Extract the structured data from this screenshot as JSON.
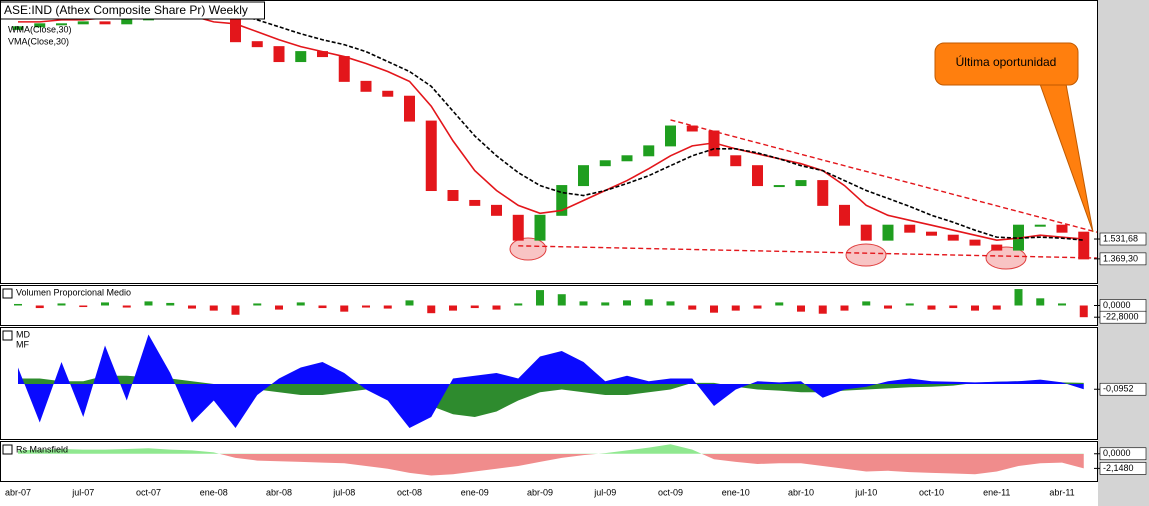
{
  "chart_data": [
    {
      "type": "candlestick",
      "title": "ASE:IND (Athex Composite Share Pr) Weekly",
      "categories": [
        "abr-07",
        null,
        null,
        "jul-07",
        null,
        null,
        "oct-07",
        null,
        null,
        "ene-08",
        null,
        null,
        "abr-08",
        null,
        null,
        "jul-08",
        null,
        null,
        "oct-08",
        null,
        null,
        "ene-09",
        null,
        null,
        "abr-09",
        null,
        null,
        "jul-09",
        null,
        null,
        "oct-09",
        null,
        null,
        "ene-10",
        null,
        null,
        "abr-10",
        null,
        null,
        "jul-10",
        null,
        null,
        "oct-10",
        null,
        null,
        "ene-11",
        null,
        null,
        "abr-11",
        null
      ],
      "open": [
        5000,
        5074,
        5160,
        5160,
        5217,
        5160,
        5276,
        5518,
        5457,
        5518,
        5366,
        4665,
        4536,
        4170,
        4411,
        4289,
        3729,
        3526,
        3429,
        2980,
        2014,
        1904,
        1852,
        1751,
        1522,
        1751,
        2071,
        2317,
        2382,
        2450,
        2591,
        2898,
        2818,
        2450,
        2317,
        2071,
        2071,
        2130,
        1852,
        1656,
        1522,
        1656,
        1592,
        1565,
        1522,
        1480,
        1439,
        1656,
        1656,
        1592
      ],
      "close": [
        5074,
        5160,
        5160,
        5217,
        5160,
        5276,
        5518,
        5457,
        5518,
        5366,
        4665,
        4536,
        4170,
        4411,
        4289,
        3729,
        3526,
        3429,
        2980,
        2014,
        1904,
        1852,
        1751,
        1522,
        1751,
        2071,
        2317,
        2382,
        2450,
        2591,
        2898,
        2818,
        2450,
        2317,
        2071,
        2071,
        2130,
        1852,
        1656,
        1522,
        1656,
        1592,
        1565,
        1522,
        1480,
        1439,
        1656,
        1656,
        1592,
        1369.3
      ],
      "up_color": "#1f9e1f",
      "down_color": "#e3161b",
      "series": [
        {
          "name": "WMA(Close,30)",
          "color": "#e3161b",
          "values": [
            5217,
            5217,
            5276,
            5276,
            5336,
            5366,
            5426,
            5457,
            5396,
            5217,
            5160,
            4934,
            4717,
            4536,
            4411,
            4289,
            4124,
            3943,
            3729,
            3241,
            2665,
            2253,
            2014,
            1852,
            1771,
            1800,
            1904,
            2014,
            2130,
            2278,
            2450,
            2591,
            2635,
            2548,
            2477,
            2409,
            2343,
            2253,
            2071,
            1852,
            1751,
            1702,
            1656,
            1610,
            1565,
            1522,
            1539,
            1565,
            1548,
            1531.68
          ]
        },
        {
          "name": "VMA(Close,30)",
          "color": "#000000",
          "dash": true,
          "values": [
            5457,
            5457,
            5457,
            5457,
            5457,
            5488,
            5518,
            5580,
            5580,
            5518,
            5457,
            5276,
            5074,
            4878,
            4717,
            4587,
            4411,
            4170,
            3943,
            3626,
            3152,
            2741,
            2450,
            2228,
            2071,
            1991,
            1958,
            2014,
            2095,
            2190,
            2317,
            2450,
            2548,
            2548,
            2491,
            2409,
            2317,
            2253,
            2130,
            2014,
            1926,
            1841,
            1751,
            1684,
            1610,
            1548,
            1539,
            1548,
            1539,
            1522
          ]
        }
      ],
      "log_scale": true,
      "ylim": [
        1195,
        5836
      ],
      "yticks": [
        {
          "value": 1531.68,
          "label": "1.531,68"
        },
        {
          "value": 1369.3,
          "label": "1.369,30"
        }
      ],
      "trendlines": [
        {
          "x": [
            30,
            49.6
          ],
          "y": [
            3000,
            1592
          ],
          "color": "#e3161b"
        },
        {
          "x": [
            23,
            49.6
          ],
          "y": [
            1474,
            1376
          ],
          "color": "#e3161b"
        }
      ],
      "annotation": "Última oportunidad"
    },
    {
      "type": "bar",
      "title": "Volumen Proporcional Medio",
      "values": [
        3,
        -5,
        4,
        -3,
        6,
        -4,
        8,
        5,
        -6,
        -10,
        -18,
        4,
        -8,
        6,
        -5,
        -12,
        -4,
        -6,
        10,
        -15,
        -10,
        -5,
        -8,
        4,
        30,
        22,
        8,
        6,
        10,
        12,
        8,
        -8,
        -14,
        -10,
        -6,
        6,
        -12,
        -16,
        -10,
        8,
        -6,
        4,
        -8,
        -5,
        -10,
        -8,
        32,
        14,
        4,
        -22.8
      ],
      "positive_color": "#22a022",
      "negative_color": "#e3161b",
      "ylim": [
        -38,
        38
      ],
      "yticks": [
        {
          "value": 0,
          "label": "0,0000"
        },
        {
          "value": -22.8,
          "label": "-22,8000"
        }
      ]
    },
    {
      "type": "area",
      "series": [
        {
          "name": "MD",
          "color": "#2e8b2e",
          "values": [
            0.1,
            0.1,
            0.05,
            0.05,
            0.15,
            0.15,
            0.12,
            0.1,
            0.05,
            0,
            -0.05,
            -0.1,
            -0.15,
            -0.2,
            -0.2,
            -0.15,
            -0.1,
            -0.05,
            -0.2,
            -0.4,
            -0.55,
            -0.6,
            -0.5,
            -0.3,
            -0.15,
            -0.1,
            -0.15,
            -0.2,
            -0.2,
            -0.15,
            -0.1,
            0.02,
            0.02,
            -0.05,
            -0.1,
            -0.12,
            -0.15,
            -0.15,
            -0.12,
            -0.1,
            -0.08,
            -0.06,
            -0.05,
            -0.03,
            0.02,
            0.04,
            0.05,
            0.05,
            0.03,
            0.02
          ]
        },
        {
          "name": "MF",
          "color": "#0a0aff",
          "values": [
            0.3,
            -0.7,
            0.4,
            -0.6,
            0.7,
            -0.3,
            0.9,
            0.2,
            -0.7,
            -0.3,
            -0.8,
            -0.2,
            0.1,
            0.3,
            0.4,
            0.2,
            -0.1,
            -0.3,
            -0.8,
            -0.6,
            0.1,
            0.15,
            0.2,
            0.1,
            0.5,
            0.6,
            0.4,
            0.05,
            0.15,
            0.05,
            0.1,
            0.1,
            -0.4,
            -0.1,
            0.05,
            0.03,
            0.05,
            -0.25,
            -0.1,
            -0.05,
            0.05,
            0.1,
            0.05,
            0.04,
            0.03,
            0.04,
            0.05,
            0.08,
            0.03,
            -0.0952
          ]
        }
      ],
      "ylim": [
        -1,
        1
      ],
      "yticks": [
        {
          "value": -0.0952,
          "label": "-0,0952"
        }
      ]
    },
    {
      "type": "area",
      "title": "Rs Mansfield",
      "values": [
        0.5,
        0.6,
        0.7,
        0.6,
        0.6,
        0.7,
        0.8,
        0.6,
        0.5,
        0.2,
        -0.6,
        -1.0,
        -1.1,
        -1.2,
        -1.3,
        -1.4,
        -1.8,
        -2.2,
        -2.8,
        -3.2,
        -3.0,
        -2.6,
        -2.2,
        -1.8,
        -1.2,
        -0.6,
        -0.2,
        0.1,
        0.5,
        0.9,
        1.4,
        0.6,
        -0.8,
        -1.2,
        -1.5,
        -1.4,
        -1.4,
        -1.8,
        -2.2,
        -2.6,
        -2.5,
        -2.7,
        -2.8,
        -2.9,
        -3.0,
        -2.6,
        -1.8,
        -1.4,
        -1.3,
        -2.148
      ],
      "positive_color": "#90e890",
      "negative_color": "#f08c8c",
      "ylim": [
        -4,
        1.58
      ],
      "yticks": [
        {
          "value": 0,
          "label": "0,0000"
        },
        {
          "value": -2.148,
          "label": "-2,1480"
        }
      ]
    }
  ]
}
